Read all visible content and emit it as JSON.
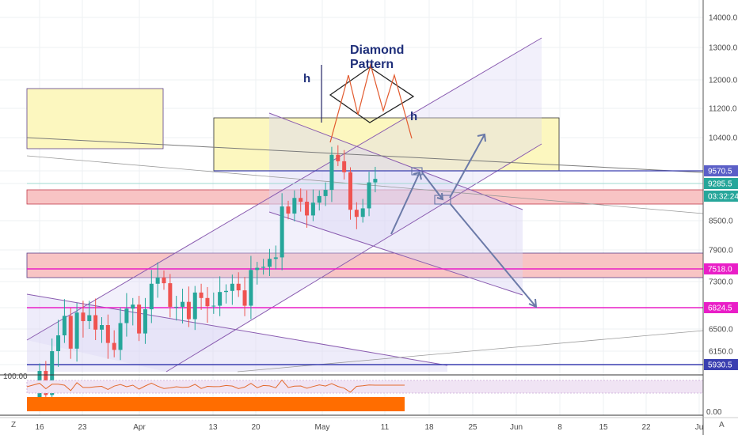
{
  "chart_data": {
    "type": "candlestick",
    "y_axis": {
      "side": "right",
      "ticks": [
        "14000.0",
        "13000.0",
        "12000.0",
        "11200.0",
        "10400.0",
        "9570.5",
        "9285.5",
        "8500.0",
        "7900.0",
        "7518.0",
        "7300.0",
        "6824.5",
        "6500.0",
        "6150.0",
        "5930.5"
      ],
      "price_levels": {
        "top": 14000,
        "bottom": 5850
      }
    },
    "x_axis": {
      "ticks": [
        "16",
        "23",
        "Apr",
        "13",
        "20",
        "May",
        "11",
        "18",
        "25",
        "Jun",
        "8",
        "15",
        "22",
        "Ju"
      ],
      "first_date": "2020-03-16",
      "last_candle_date": "2020-05-13"
    },
    "price_tags": [
      {
        "value": "9570.5",
        "bg": "#5b5fc7",
        "text_color": "#ffffff"
      },
      {
        "value": "9285.5",
        "bg": "#26a69a",
        "text_color": "#ffffff"
      },
      {
        "value": "03:32:24",
        "bg": "#26a69a",
        "text_color": "#ffffff"
      },
      {
        "value": "7518.0",
        "bg": "#e91ec7",
        "text_color": "#ffffff"
      },
      {
        "value": "6824.5",
        "bg": "#e91ec7",
        "text_color": "#ffffff"
      },
      {
        "value": "5930.5",
        "bg": "#3a3fb0",
        "text_color": "#ffffff"
      }
    ],
    "annotations": {
      "pattern_title_line1": "Diamond",
      "pattern_title_line2": "Pattern",
      "height_label_left": "h",
      "height_label_right": "h"
    },
    "horizontal_levels": [
      {
        "price": 9570.5,
        "color": "#3a3fb0"
      },
      {
        "price": 6824.5,
        "color": "#e91ec7"
      },
      {
        "price": 5930.5,
        "color": "#3a3fb0"
      },
      {
        "price": 7518.0,
        "color": "#e91ec7"
      }
    ],
    "zones": [
      {
        "from": 9150,
        "to": 8900,
        "color": "#f6b5b5"
      },
      {
        "from": 7850,
        "to": 7330,
        "color": "#f6b5b5"
      },
      {
        "from": 10850,
        "to": 9600,
        "color": "#fbf6b0"
      },
      {
        "from": 11650,
        "to": 10150,
        "color": "#fbf6b0"
      }
    ],
    "oscillator": {
      "label": "100.00",
      "right_tick": "0.00"
    },
    "closes": [
      5830,
      5450,
      6150,
      6400,
      6700,
      6190,
      6750,
      6620,
      6710,
      6490,
      6560,
      6280,
      6170,
      6590,
      6810,
      6880,
      6430,
      6800,
      7260,
      7370,
      7270,
      6840,
      6840,
      6930,
      6650,
      7100,
      7000,
      6850,
      6860,
      7110,
      7130,
      7260,
      7140,
      6860,
      7500,
      7540,
      7560,
      7720,
      7750,
      8800,
      8650,
      8980,
      8900,
      8610,
      8880,
      9020,
      9150,
      9970,
      9810,
      9540,
      8730,
      8580,
      8760,
      9310,
      9390
    ]
  },
  "ui": {
    "bottom_left_button": "Z",
    "bottom_right_button": "A",
    "settings_icon": "gear-icon"
  }
}
